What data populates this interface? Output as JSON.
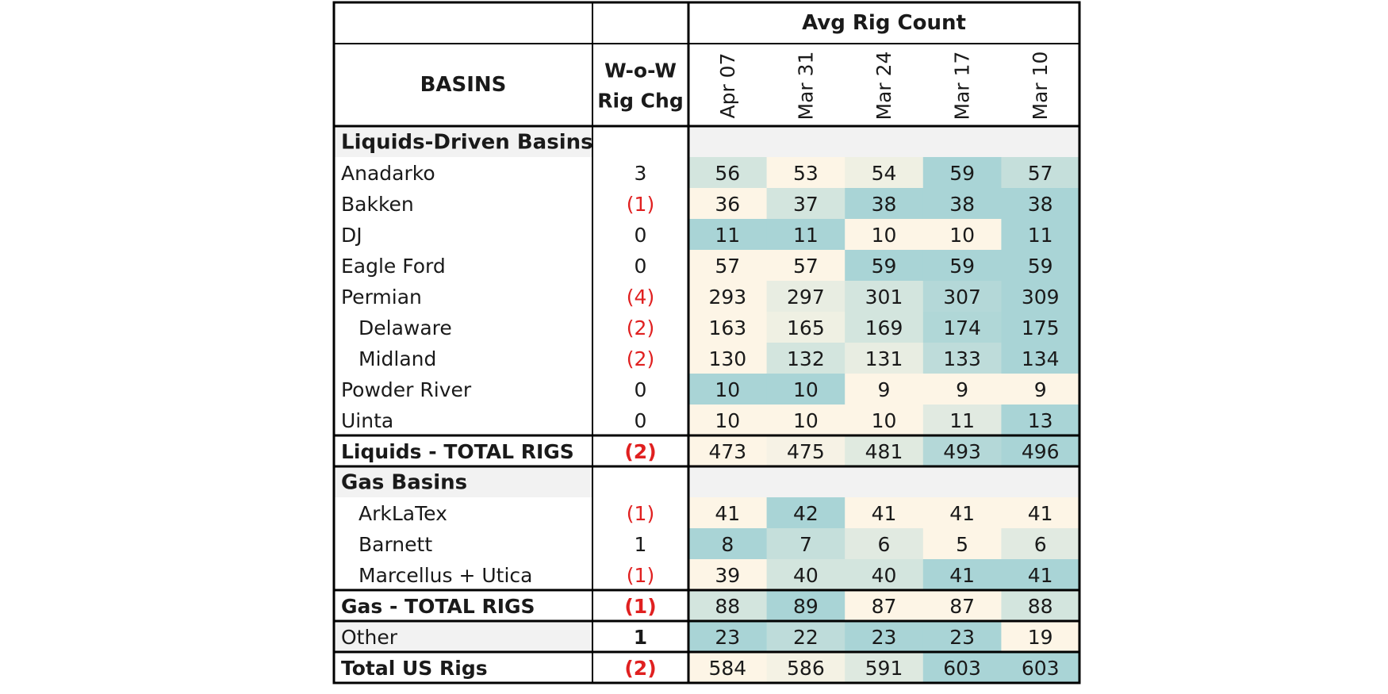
{
  "chart_data": {
    "type": "table",
    "header": {
      "group_label": "Avg Rig Count",
      "basin_label": "BASINS",
      "change_label_line1": "W-o-W",
      "change_label_line2": "Rig Chg",
      "weeks": [
        "Apr 07",
        "Mar 31",
        "Mar 24",
        "Mar 17",
        "Mar 10"
      ]
    },
    "rows": [
      {
        "kind": "section",
        "label": "Liquids-Driven Basins"
      },
      {
        "kind": "basin",
        "indent": false,
        "label": "Anadarko",
        "chg": "3",
        "negative": false,
        "values": [
          56,
          53,
          54,
          59,
          57
        ]
      },
      {
        "kind": "basin",
        "indent": false,
        "label": "Bakken",
        "chg": "(1)",
        "negative": true,
        "values": [
          36,
          37,
          38,
          38,
          38
        ]
      },
      {
        "kind": "basin",
        "indent": false,
        "label": "DJ",
        "chg": "0",
        "negative": false,
        "values": [
          11,
          11,
          10,
          10,
          11
        ]
      },
      {
        "kind": "basin",
        "indent": false,
        "label": "Eagle Ford",
        "chg": "0",
        "negative": false,
        "values": [
          57,
          57,
          59,
          59,
          59
        ]
      },
      {
        "kind": "basin",
        "indent": false,
        "label": "Permian",
        "chg": "(4)",
        "negative": true,
        "values": [
          293,
          297,
          301,
          307,
          309
        ]
      },
      {
        "kind": "basin",
        "indent": true,
        "label": "Delaware",
        "chg": "(2)",
        "negative": true,
        "values": [
          163,
          165,
          169,
          174,
          175
        ]
      },
      {
        "kind": "basin",
        "indent": true,
        "label": "Midland",
        "chg": "(2)",
        "negative": true,
        "values": [
          130,
          132,
          131,
          133,
          134
        ]
      },
      {
        "kind": "basin",
        "indent": false,
        "label": "Powder River",
        "chg": "0",
        "negative": false,
        "values": [
          10,
          10,
          9,
          9,
          9
        ]
      },
      {
        "kind": "basin",
        "indent": false,
        "label": "Uinta",
        "chg": "0",
        "negative": false,
        "values": [
          10,
          10,
          10,
          11,
          13
        ]
      },
      {
        "kind": "total",
        "label": "Liquids - TOTAL RIGS",
        "chg": "(2)",
        "negative": true,
        "values": [
          473,
          475,
          481,
          493,
          496
        ]
      },
      {
        "kind": "section",
        "label": "Gas Basins"
      },
      {
        "kind": "basin",
        "indent": true,
        "label": "ArkLaTex",
        "chg": "(1)",
        "negative": true,
        "values": [
          41,
          42,
          41,
          41,
          41
        ]
      },
      {
        "kind": "basin",
        "indent": true,
        "label": "Barnett",
        "chg": "1",
        "negative": false,
        "values": [
          8,
          7,
          6,
          5,
          6
        ]
      },
      {
        "kind": "basin",
        "indent": true,
        "label": "Marcellus + Utica",
        "chg": "(1)",
        "negative": true,
        "values": [
          39,
          40,
          40,
          41,
          41
        ]
      },
      {
        "kind": "total",
        "label": "Gas - TOTAL RIGS",
        "chg": "(1)",
        "negative": true,
        "values": [
          88,
          89,
          87,
          87,
          88
        ]
      },
      {
        "kind": "other",
        "label": "Other",
        "chg": "1",
        "negative": false,
        "values": [
          23,
          22,
          23,
          23,
          19
        ]
      },
      {
        "kind": "total",
        "label": "Total US Rigs",
        "chg": "(2)",
        "negative": true,
        "values": [
          584,
          586,
          591,
          603,
          603
        ]
      }
    ]
  },
  "colors": {
    "heat_low": "#fdf5e6",
    "heat_high": "#a9d4d6",
    "negative": "#e02020",
    "section_bg": "#f2f2f2",
    "border": "#000000",
    "text": "#1a1a1a"
  }
}
